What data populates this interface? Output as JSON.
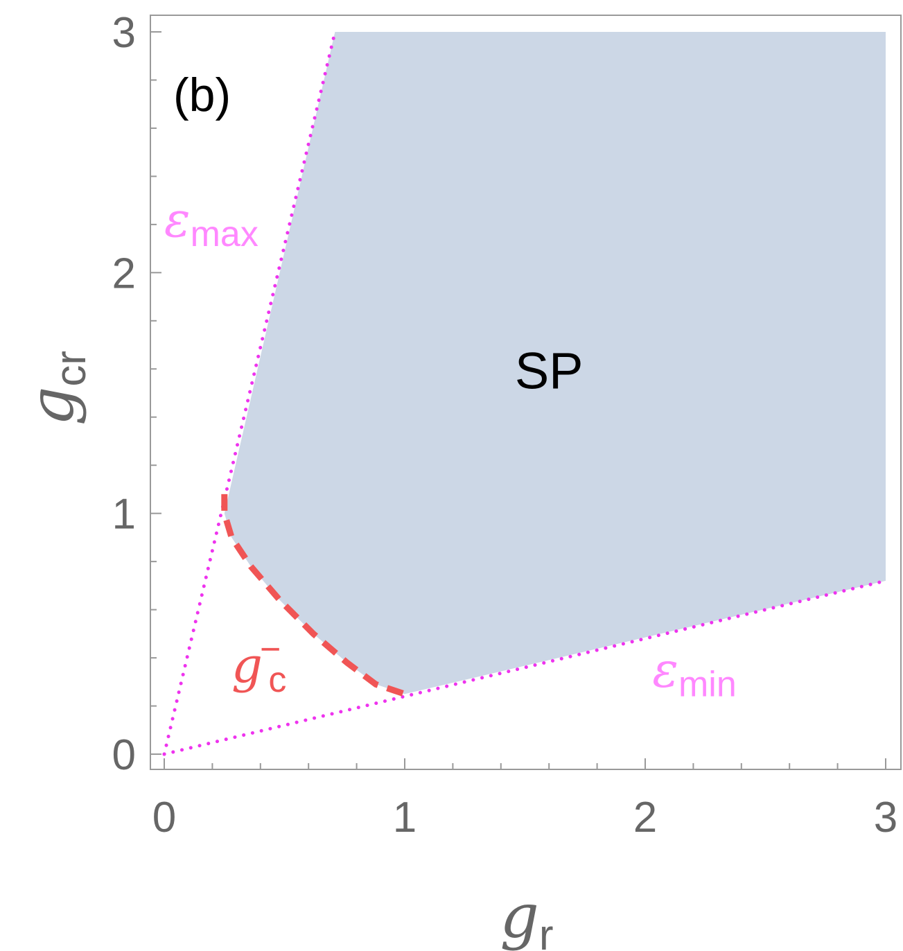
{
  "chart_data": {
    "type": "area",
    "panel_label": "(b)",
    "xlabel": {
      "symbol": "g",
      "subscript": "r"
    },
    "ylabel": {
      "symbol": "g",
      "subscript": "cr"
    },
    "xlim": [
      0,
      3
    ],
    "ylim": [
      0,
      3
    ],
    "xticks": [
      0,
      1,
      2,
      3
    ],
    "yticks": [
      0,
      1,
      2,
      3
    ],
    "xtick_labels": [
      "0",
      "1",
      "2",
      "3"
    ],
    "ytick_labels": [
      "0",
      "1",
      "2",
      "3"
    ],
    "minor_ticks_per_major": 5,
    "grid": false,
    "region": {
      "label": "SP",
      "color": "#ccd7e6",
      "label_at": [
        1.6,
        1.6
      ],
      "boundary": [
        [
          0.25,
          1.0
        ],
        [
          0.28,
          0.9
        ],
        [
          0.36,
          0.78
        ],
        [
          0.48,
          0.64
        ],
        [
          0.62,
          0.5
        ],
        [
          0.76,
          0.38
        ],
        [
          0.88,
          0.29
        ],
        [
          1.0,
          0.25
        ],
        [
          3.0,
          0.72
        ],
        [
          3.0,
          3.0
        ],
        [
          0.71,
          3.0
        ],
        [
          0.25,
          1.0
        ]
      ]
    },
    "series": [
      {
        "name": "ε_max",
        "label": {
          "symbol": "ε",
          "subscript": "max"
        },
        "label_at": [
          0.0,
          2.15
        ],
        "style": "dotted",
        "color": "#ee33ee",
        "x": [
          0.0,
          0.71
        ],
        "y": [
          0.0,
          3.0
        ]
      },
      {
        "name": "ε_min",
        "label": {
          "symbol": "ε",
          "subscript": "min"
        },
        "label_at": [
          2.03,
          0.28
        ],
        "style": "dotted",
        "color": "#ee33ee",
        "x": [
          0.0,
          3.0
        ],
        "y": [
          0.0,
          0.72
        ]
      },
      {
        "name": "g_c^-",
        "label": {
          "symbol": "g",
          "subscript": "c",
          "superscript": "−"
        },
        "label_at": [
          0.28,
          0.3
        ],
        "style": "dashed",
        "color": "#f05555",
        "x": [
          0.25,
          0.25,
          0.28,
          0.36,
          0.48,
          0.62,
          0.76,
          0.88,
          1.0,
          1.03
        ],
        "y": [
          1.08,
          1.0,
          0.9,
          0.78,
          0.64,
          0.5,
          0.38,
          0.29,
          0.25,
          0.25
        ]
      }
    ],
    "label_colors": {
      "epsilon": "#ff88ff",
      "gc": "#f05555",
      "axis": "#666666"
    }
  }
}
